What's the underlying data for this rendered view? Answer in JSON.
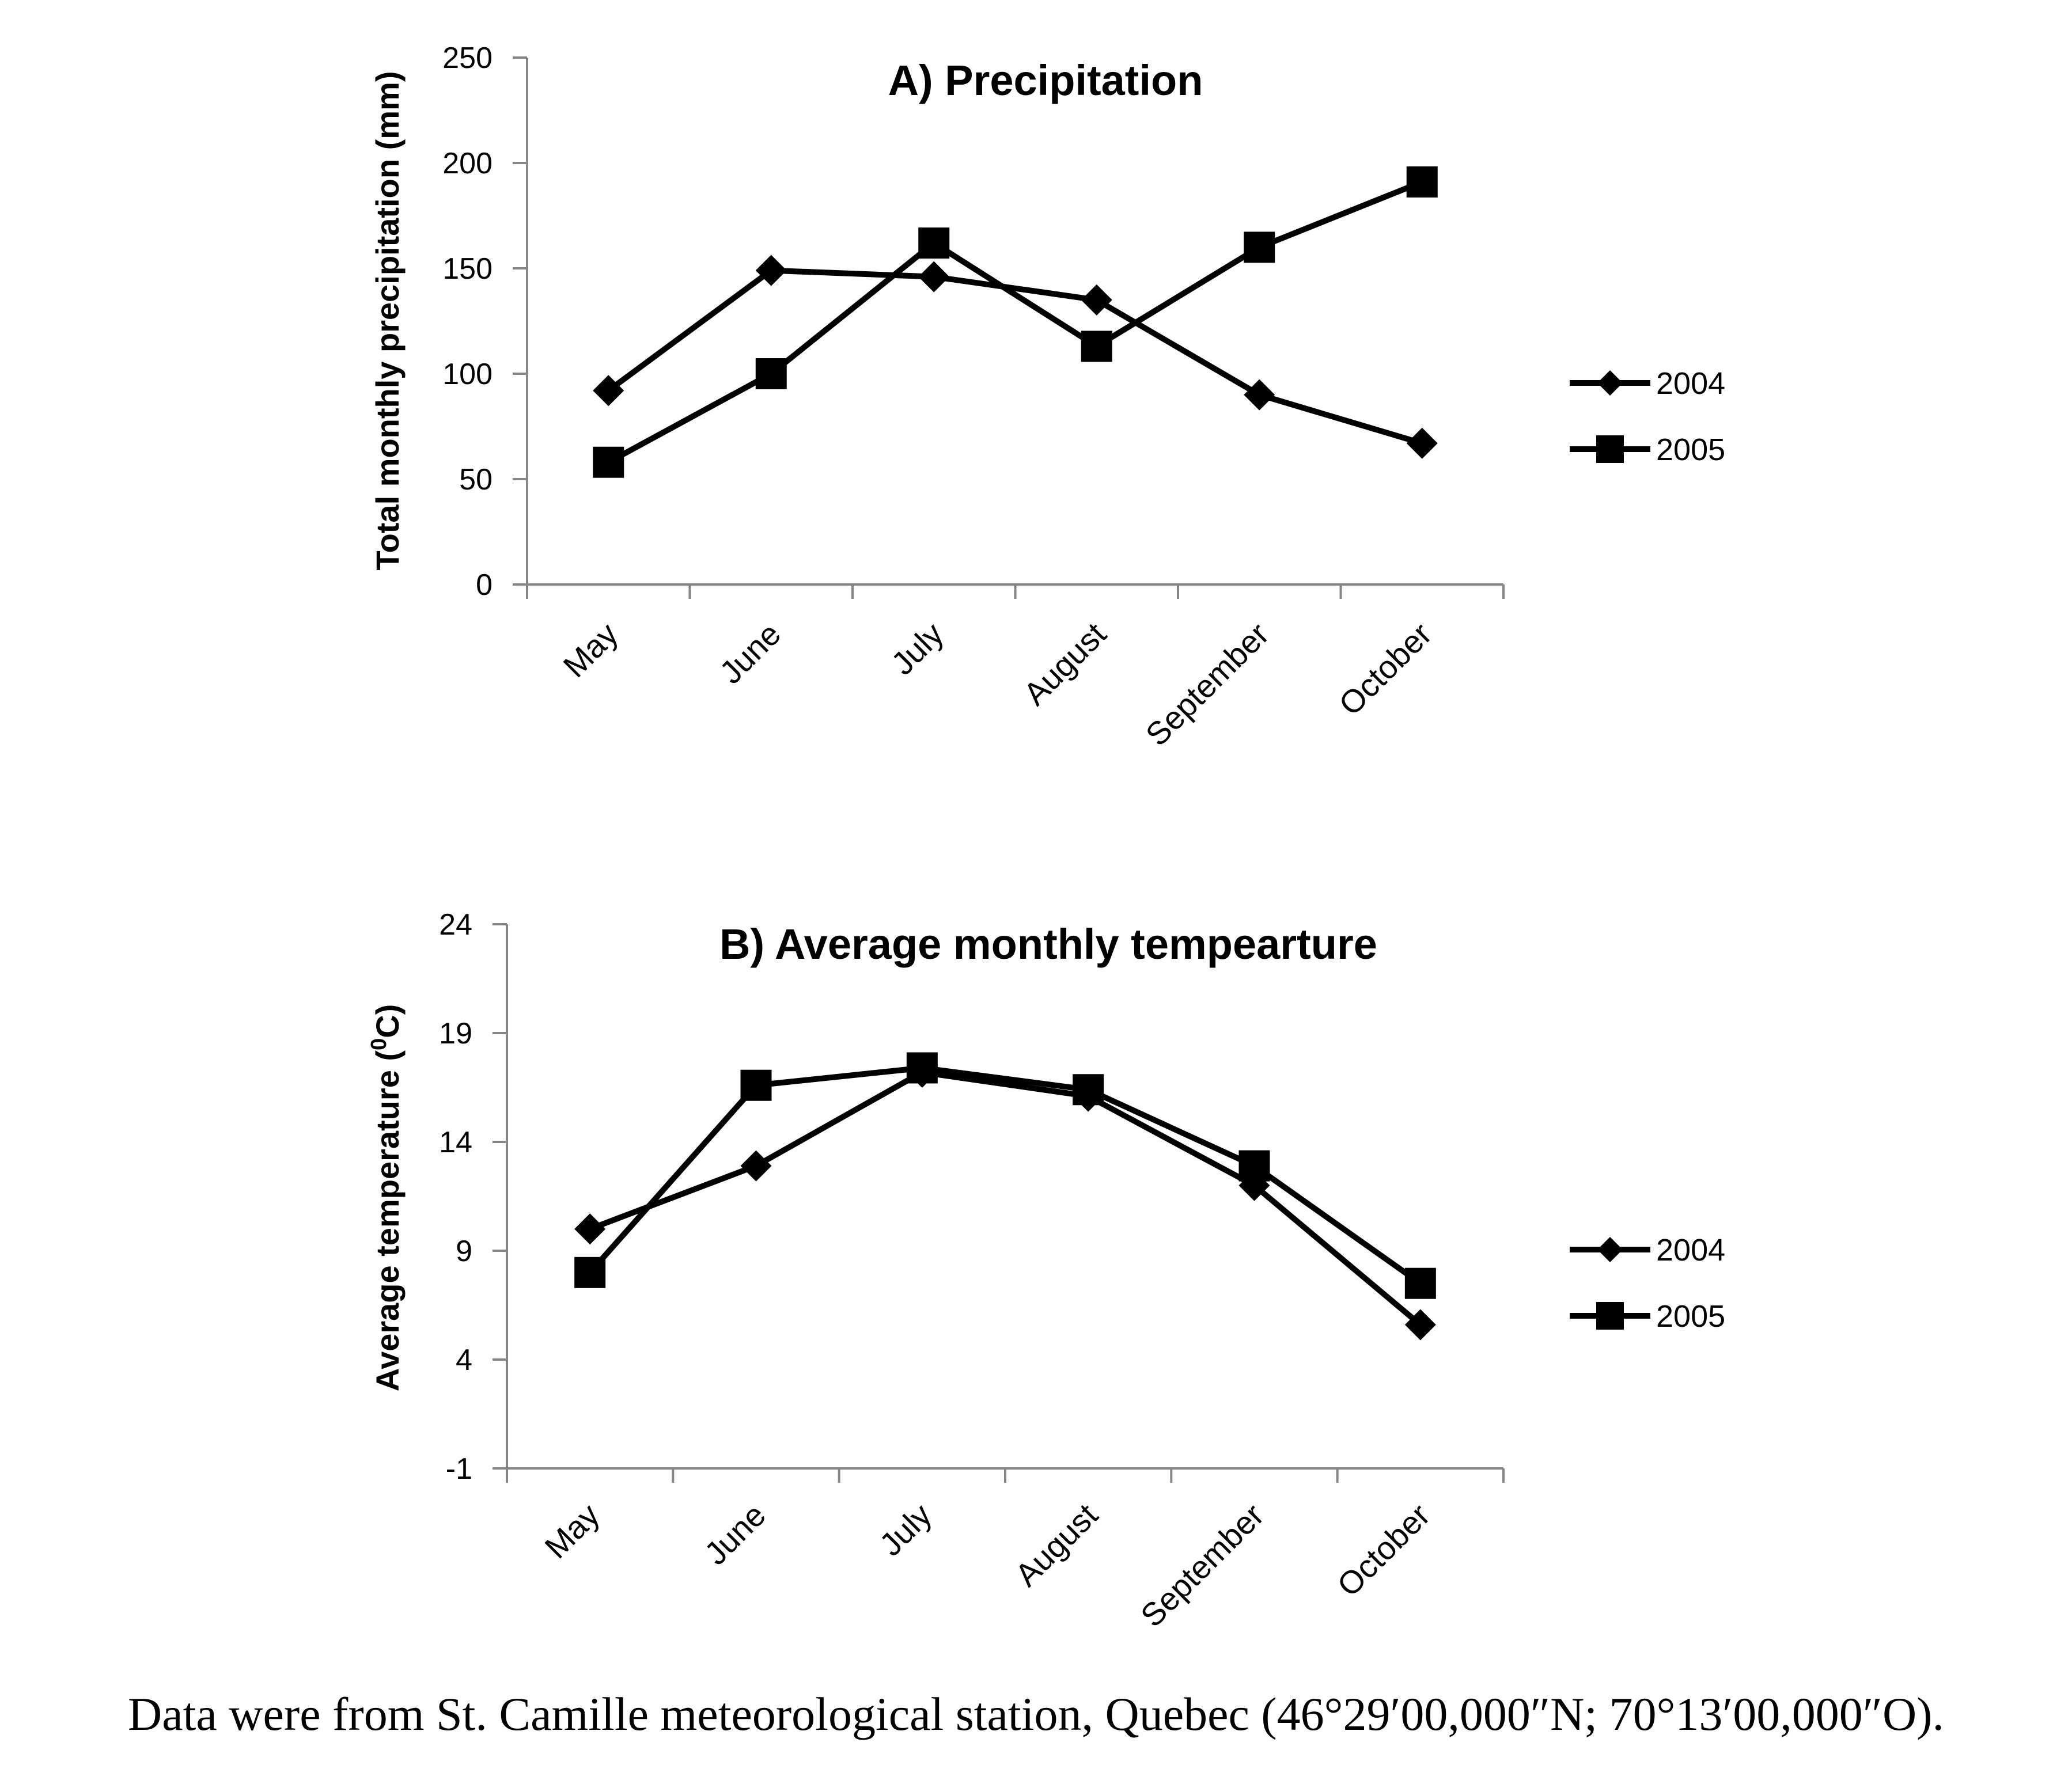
{
  "chart_data": [
    {
      "type": "line",
      "title": "A) Precipitation",
      "xlabel": "",
      "ylabel": "Total monthly precipitation (mm)",
      "ylim": [
        0,
        250
      ],
      "yticks": [
        "0",
        "50",
        "100",
        "150",
        "200",
        "250"
      ],
      "categories": [
        "May",
        "June",
        "July",
        "August",
        "September",
        "October"
      ],
      "grid": false,
      "legend_position": "right",
      "series": [
        {
          "name": "2004",
          "marker": "diamond",
          "color": "#000000",
          "values": [
            92,
            149,
            146,
            135,
            90,
            67
          ]
        },
        {
          "name": "2005",
          "marker": "square",
          "color": "#000000",
          "values": [
            58,
            100,
            162,
            113,
            160,
            191
          ]
        }
      ]
    },
    {
      "type": "line",
      "title": "B) Average monthly tempearture",
      "xlabel": "",
      "ylabel_prefix": "Average temperature (",
      "ylabel_sup": "0",
      "ylabel_suffix": "C)",
      "ylim": [
        -1,
        24
      ],
      "yticks": [
        "-1",
        "4",
        "9",
        "14",
        "19",
        "24"
      ],
      "categories": [
        "May",
        "June",
        "July",
        "August",
        "September",
        "October"
      ],
      "grid": false,
      "legend_position": "right",
      "series": [
        {
          "name": "2004",
          "marker": "diamond",
          "color": "#000000",
          "values": [
            10.0,
            12.9,
            17.2,
            16.1,
            12.0,
            5.6
          ]
        },
        {
          "name": "2005",
          "marker": "square",
          "color": "#000000",
          "values": [
            8.0,
            16.6,
            17.4,
            16.4,
            12.9,
            7.5
          ]
        }
      ]
    }
  ],
  "caption": "Data were from St. Camille meteorological station, Quebec (46°29′00,000″N; 70°13′00,000″O)."
}
